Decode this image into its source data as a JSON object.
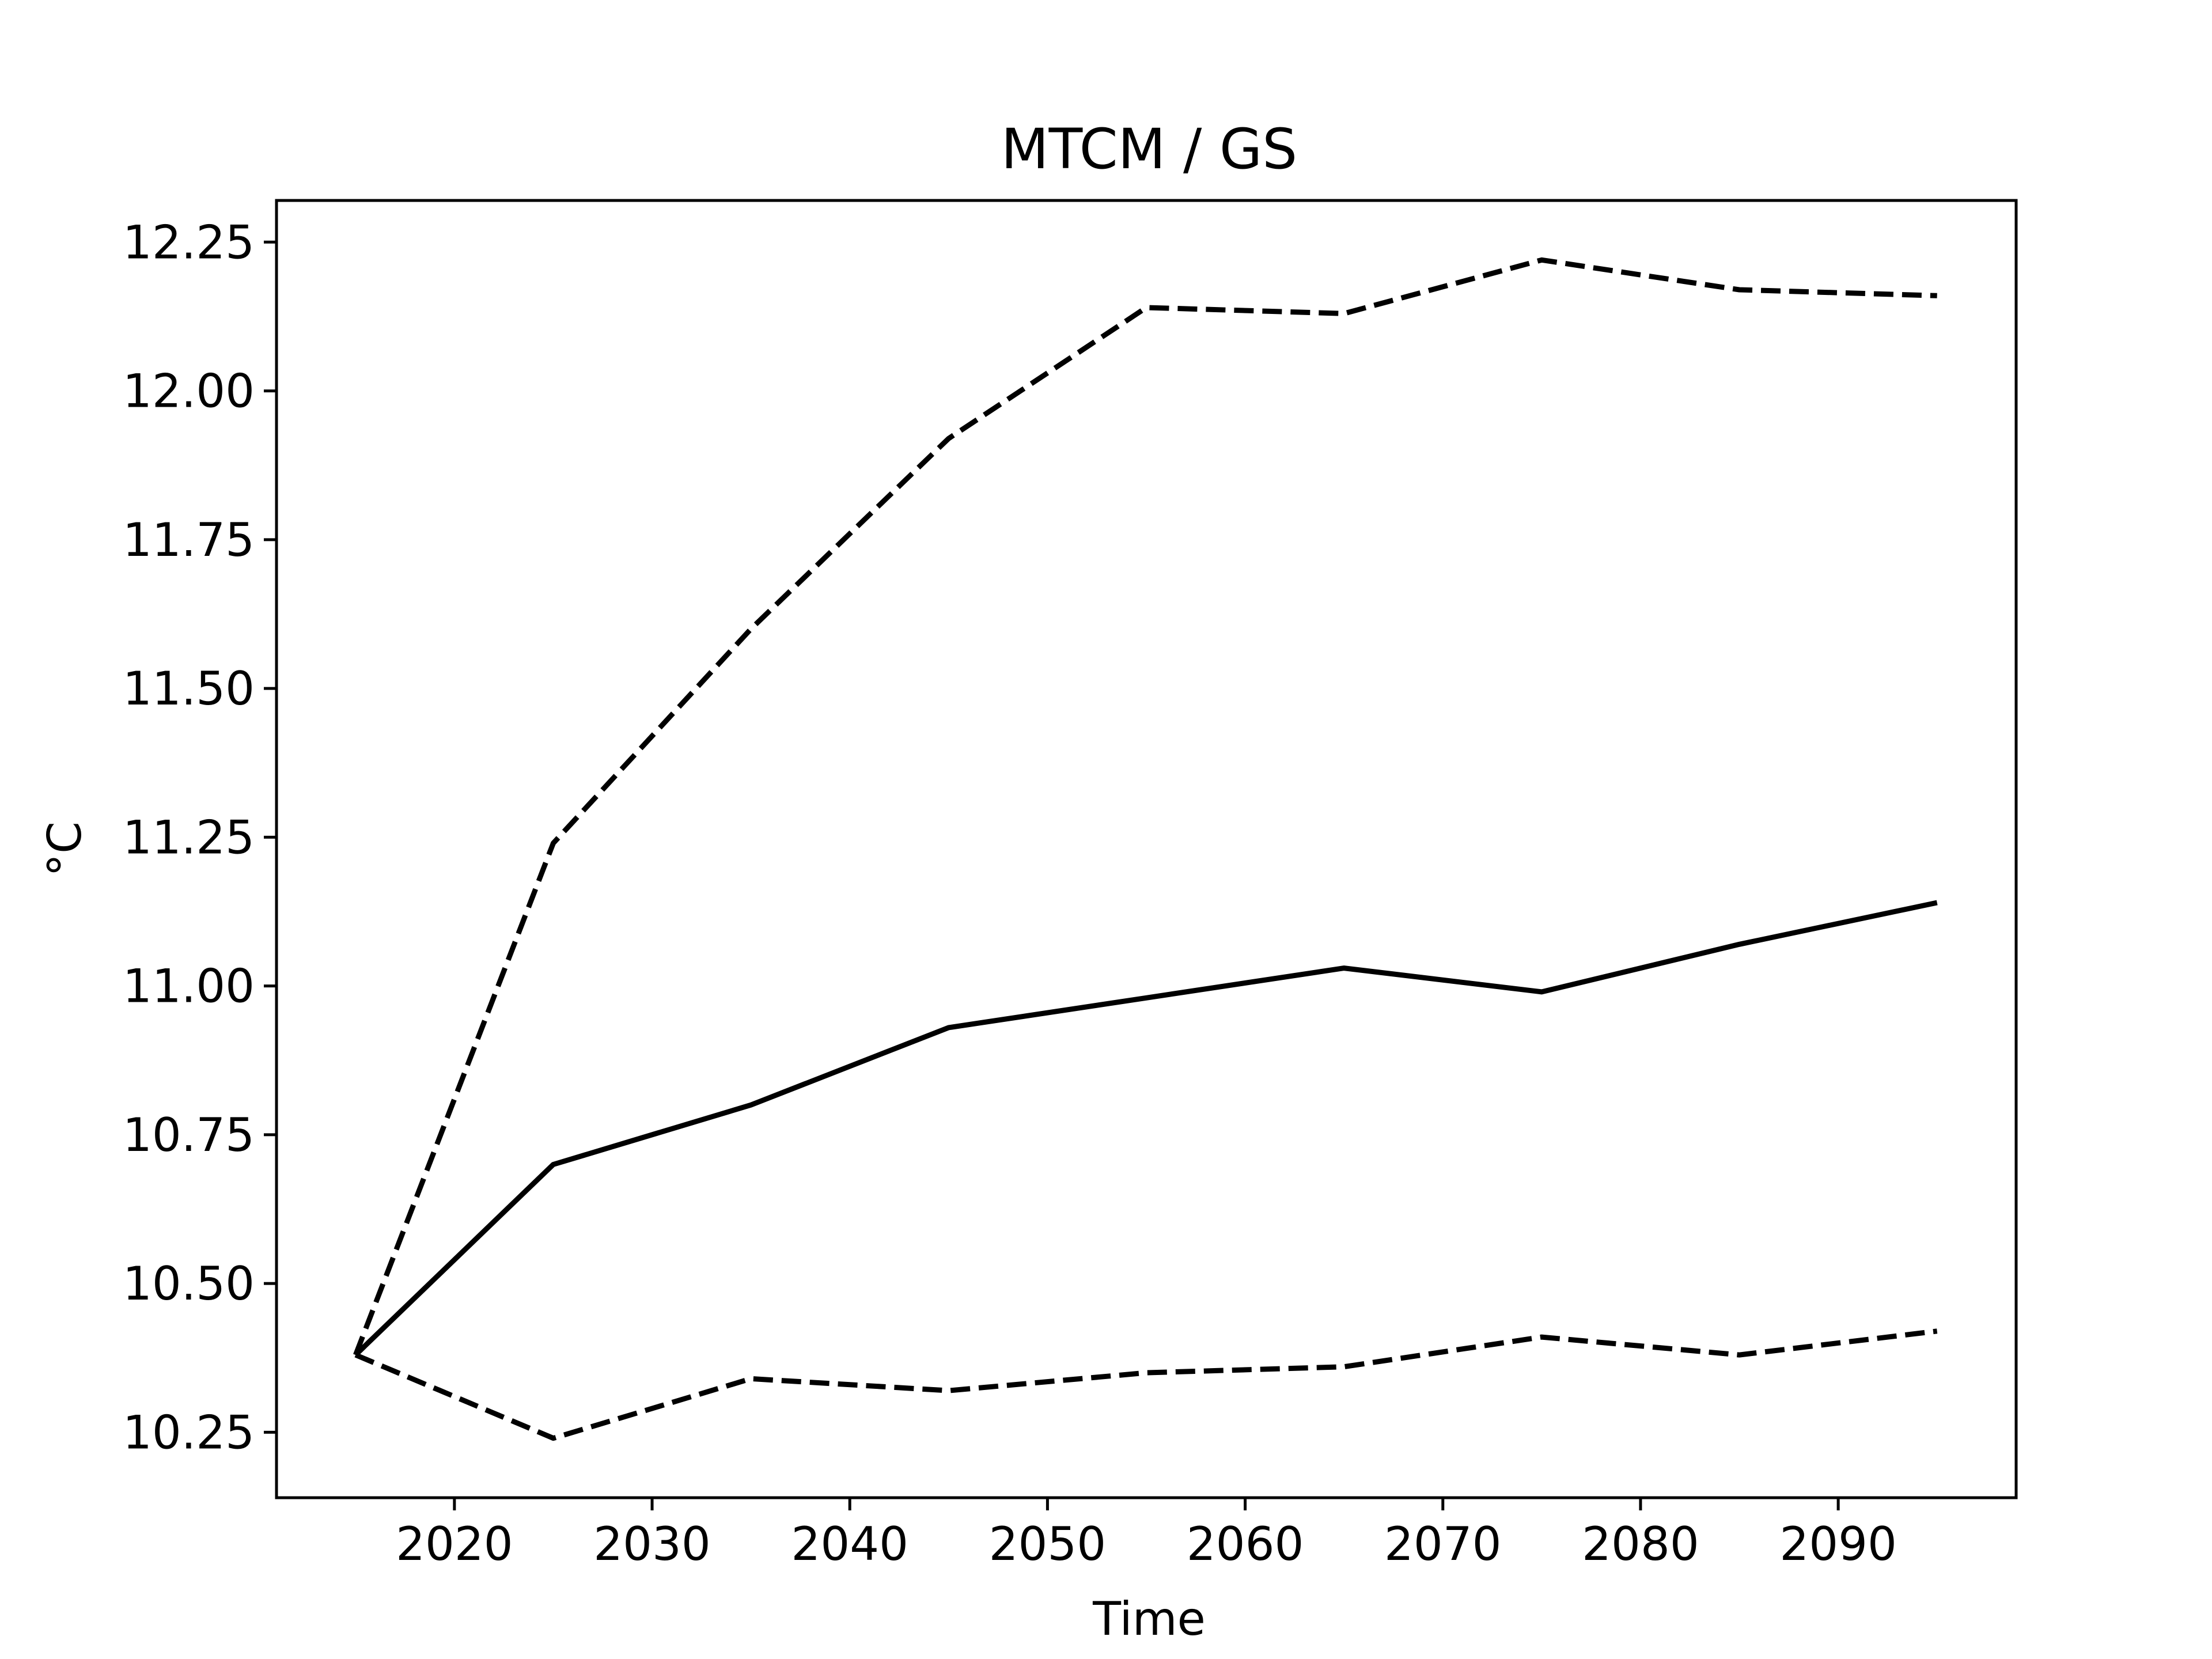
{
  "chart_data": {
    "type": "line",
    "title": "MTCM / GS",
    "xlabel": "Time",
    "ylabel": "°C",
    "xlim": [
      2011,
      2099
    ],
    "ylim": [
      10.14,
      12.32
    ],
    "xticks": [
      2020,
      2030,
      2040,
      2050,
      2060,
      2070,
      2080,
      2090
    ],
    "xtick_labels": [
      "2020",
      "2030",
      "2040",
      "2050",
      "2060",
      "2070",
      "2080",
      "2090"
    ],
    "yticks": [
      10.25,
      10.5,
      10.75,
      11.0,
      11.25,
      11.5,
      11.75,
      12.0,
      12.25
    ],
    "ytick_labels": [
      "10.25",
      "10.50",
      "10.75",
      "11.00",
      "11.25",
      "11.50",
      "11.75",
      "12.00",
      "12.25"
    ],
    "grid": false,
    "x": [
      2015,
      2025,
      2035,
      2045,
      2055,
      2065,
      2075,
      2085,
      2095
    ],
    "series": [
      {
        "style": "dashed",
        "color": "#000000",
        "values": [
          10.38,
          11.24,
          11.6,
          11.92,
          12.14,
          12.13,
          12.22,
          12.17,
          12.16
        ]
      },
      {
        "style": "solid",
        "color": "#000000",
        "values": [
          10.38,
          10.7,
          10.8,
          10.93,
          10.98,
          11.03,
          10.99,
          11.07,
          11.14
        ]
      },
      {
        "style": "dashed",
        "color": "#000000",
        "values": [
          10.38,
          10.24,
          10.34,
          10.32,
          10.35,
          10.36,
          10.41,
          10.38,
          10.42
        ]
      }
    ]
  }
}
